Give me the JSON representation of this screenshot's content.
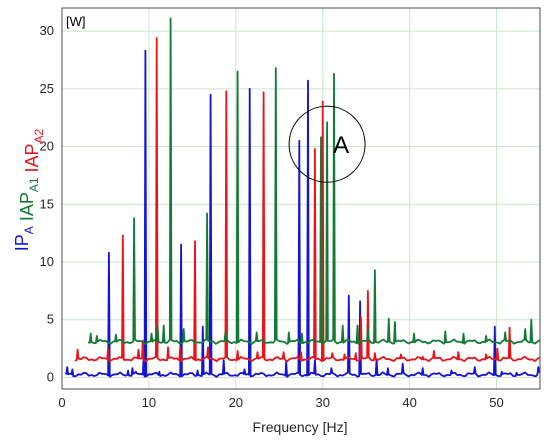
{
  "chart_data": {
    "type": "line",
    "xlabel": "Frequency [Hz]",
    "unit_label": "[W]",
    "xlim": [
      0,
      55
    ],
    "ylim": [
      -1,
      32
    ],
    "x_ticks": [
      0,
      10,
      20,
      30,
      40,
      50
    ],
    "y_ticks": [
      0,
      5,
      10,
      15,
      20,
      25,
      30
    ],
    "grid": true,
    "ylabel_parts": [
      {
        "main": "IP",
        "sub": "A",
        "color": "#1414d2"
      },
      {
        "main": " IAP",
        "sub": "A1",
        "color": "#137a36"
      },
      {
        "main": " IAP",
        "sub": "A2",
        "color": "#e8141a"
      }
    ],
    "annotation": {
      "text": "A",
      "x": 30.5,
      "y": 20.2
    },
    "series": [
      {
        "name": "IP",
        "color": "#1414d2",
        "x_start": 0.4,
        "x_end": 55,
        "baseline": 0.25,
        "peaks": [
          [
            0.6,
            0.9
          ],
          [
            1.2,
            0.7
          ],
          [
            5.4,
            10.8
          ],
          [
            7.6,
            0.6
          ],
          [
            8.1,
            0.8
          ],
          [
            8.5,
            0.5
          ],
          [
            9.4,
            1.9
          ],
          [
            9.6,
            28.3
          ],
          [
            11.2,
            0.5
          ],
          [
            13.7,
            11.5
          ],
          [
            15.6,
            0.6
          ],
          [
            16.2,
            4.4
          ],
          [
            17.1,
            24.5
          ],
          [
            18.6,
            1.5
          ],
          [
            21.0,
            0.7
          ],
          [
            21.6,
            25.0
          ],
          [
            25.8,
            1.4
          ],
          [
            27.3,
            20.5
          ],
          [
            28.3,
            25.7
          ],
          [
            29.1,
            1.5
          ],
          [
            31.0,
            0.8
          ],
          [
            33.0,
            7.1
          ],
          [
            34.3,
            6.6
          ],
          [
            36.2,
            1.6
          ],
          [
            37.5,
            0.8
          ],
          [
            39.2,
            1.2
          ],
          [
            41.5,
            0.8
          ],
          [
            44.8,
            0.6
          ],
          [
            47.5,
            0.9
          ],
          [
            49.8,
            4.4
          ],
          [
            50.6,
            0.5
          ],
          [
            52.3,
            0.4
          ],
          [
            54.8,
            0.9
          ]
        ]
      },
      {
        "name": "IAP A2",
        "color": "#e8141a",
        "x_start": 1.5,
        "x_end": 55,
        "baseline": 1.6,
        "peaks": [
          [
            1.8,
            2.4
          ],
          [
            5.3,
            2.5
          ],
          [
            7.0,
            12.3
          ],
          [
            8.8,
            2.4
          ],
          [
            9.3,
            3.2
          ],
          [
            10.9,
            29.4
          ],
          [
            12.2,
            2.6
          ],
          [
            13.6,
            2.6
          ],
          [
            15.3,
            11.8
          ],
          [
            16.8,
            2.6
          ],
          [
            18.9,
            24.8
          ],
          [
            20.2,
            2.3
          ],
          [
            22.5,
            2.2
          ],
          [
            23.2,
            24.7
          ],
          [
            25.5,
            2.2
          ],
          [
            27.5,
            2.2
          ],
          [
            29.1,
            19.8
          ],
          [
            30.0,
            23.9
          ],
          [
            31.1,
            2.1
          ],
          [
            32.5,
            2.0
          ],
          [
            33.8,
            2.1
          ],
          [
            34.4,
            5.2
          ],
          [
            35.2,
            7.5
          ],
          [
            36.0,
            2.1
          ],
          [
            39.0,
            2.0
          ],
          [
            41.5,
            1.8
          ],
          [
            42.8,
            2.3
          ],
          [
            45.6,
            2.2
          ],
          [
            47.4,
            1.7
          ],
          [
            48.8,
            2.0
          ],
          [
            50.1,
            2.5
          ],
          [
            51.5,
            4.3
          ],
          [
            53.4,
            1.7
          ]
        ]
      },
      {
        "name": "IAP A1",
        "color": "#137a36",
        "x_start": 3.0,
        "x_end": 55,
        "baseline": 3.1,
        "peaks": [
          [
            3.3,
            3.8
          ],
          [
            4.0,
            3.6
          ],
          [
            6.2,
            3.7
          ],
          [
            8.3,
            13.8
          ],
          [
            10.3,
            3.8
          ],
          [
            11.0,
            4.5
          ],
          [
            11.7,
            4.5
          ],
          [
            12.5,
            31.1
          ],
          [
            14.0,
            4.2
          ],
          [
            16.7,
            14.2
          ],
          [
            18.8,
            3.9
          ],
          [
            20.2,
            26.5
          ],
          [
            22.4,
            3.9
          ],
          [
            24.6,
            26.8
          ],
          [
            26.1,
            3.9
          ],
          [
            27.6,
            3.8
          ],
          [
            29.8,
            20.8
          ],
          [
            30.5,
            22.1
          ],
          [
            31.3,
            26.3
          ],
          [
            32.3,
            4.5
          ],
          [
            34.0,
            4.5
          ],
          [
            35.2,
            4.2
          ],
          [
            36.0,
            9.3
          ],
          [
            37.6,
            5.1
          ],
          [
            38.3,
            4.8
          ],
          [
            40.5,
            3.8
          ],
          [
            44.1,
            4.0
          ],
          [
            46.2,
            3.8
          ],
          [
            48.8,
            3.6
          ],
          [
            51.0,
            3.9
          ],
          [
            53.3,
            4.2
          ],
          [
            54.0,
            5.0
          ]
        ]
      }
    ]
  }
}
